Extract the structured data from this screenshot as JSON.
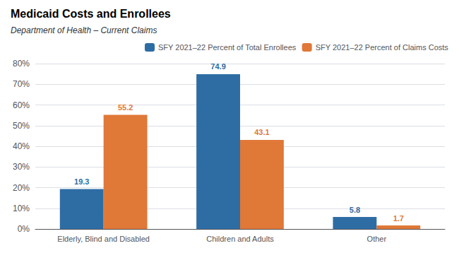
{
  "chart_data": {
    "type": "bar",
    "title": "Medicaid Costs and Enrollees",
    "subtitle": "Department of Health – Current Claims",
    "categories": [
      "Elderly, Blind and Disabled",
      "Children and Adults",
      "Other"
    ],
    "series": [
      {
        "name": "SFY 2021–22 Percent of Total Enrollees",
        "color": "#2E6DA4",
        "values": [
          19.3,
          74.9,
          5.8
        ]
      },
      {
        "name": "SFY 2021–22 Percent of Claims Costs",
        "color": "#E07838",
        "values": [
          55.2,
          43.1,
          1.7
        ]
      }
    ],
    "ylim": [
      0,
      80
    ],
    "yticks": [
      {
        "value": 0,
        "label": "0%"
      },
      {
        "value": 10,
        "label": "10%"
      },
      {
        "value": 20,
        "label": "20%"
      },
      {
        "value": 30,
        "label": "30%"
      },
      {
        "value": 40,
        "label": "40%"
      },
      {
        "value": 50,
        "label": "50%"
      },
      {
        "value": 60,
        "label": "60%"
      },
      {
        "value": 70,
        "label": "70%"
      },
      {
        "value": 80,
        "label": "80%"
      }
    ],
    "grid": true,
    "legend": "upper right",
    "data_labels": true
  }
}
